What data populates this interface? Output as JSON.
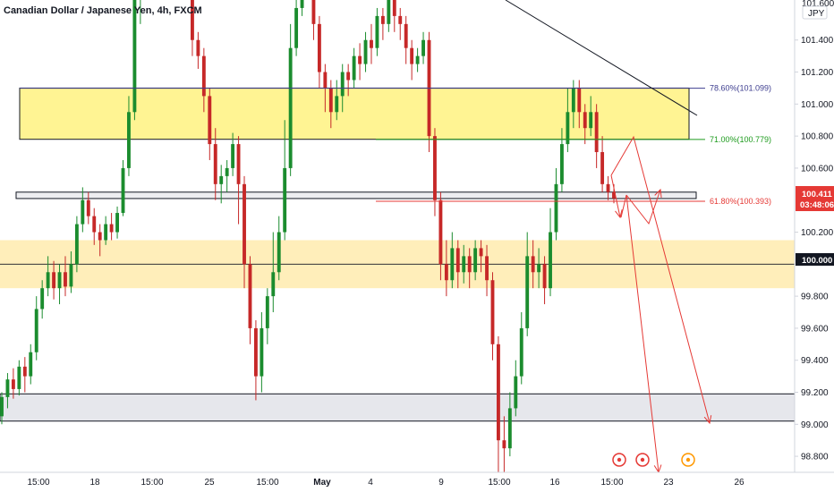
{
  "header": {
    "title": "Canadian Dollar / Japanese Yen, 4h, FXCM"
  },
  "price_axis": {
    "currency": "JPY",
    "top_label": "101.600",
    "ticks": [
      "101.400",
      "101.200",
      "101.000",
      "100.800",
      "100.600",
      "100.200",
      "99.800",
      "99.600",
      "99.400",
      "99.200",
      "99.000",
      "98.800"
    ]
  },
  "price_badges": {
    "last_price": "100.411",
    "countdown": "03:48:06",
    "level_price": "100.000"
  },
  "fib_levels": [
    {
      "label": "78.60%(101.099)",
      "price": 101.099,
      "color": "#3d3d8f"
    },
    {
      "label": "71.00%(100.779)",
      "price": 100.779,
      "color": "#1d9b1d"
    },
    {
      "label": "61.80%(100.393)",
      "price": 100.393,
      "color": "#e53935"
    }
  ],
  "time_axis": [
    "15:00",
    "18",
    "15:00",
    "25",
    "15:00",
    "May",
    "4",
    "9",
    "15:00",
    "16",
    "15:00",
    "23",
    "26"
  ],
  "colors": {
    "up": "#26a69a",
    "up_body": "#1b8c2e",
    "down": "#c62828",
    "zone_yellow": "#fff176",
    "zone_gray": "#d1d4dc",
    "projection": "#e53935"
  },
  "chart_data": {
    "type": "candlestick",
    "title": "Canadian Dollar / Japanese Yen, 4h, FXCM",
    "ylabel": "JPY",
    "ylim": [
      98.7,
      101.65
    ],
    "zones": [
      {
        "kind": "supply",
        "from": 100.78,
        "to": 101.1
      },
      {
        "kind": "flip",
        "from": 100.41,
        "to": 100.45
      },
      {
        "kind": "demand",
        "from": 99.85,
        "to": 100.15
      },
      {
        "kind": "support",
        "from": 99.02,
        "to": 99.19
      }
    ],
    "horizontal_lines": [
      100.0
    ],
    "last_price": 100.411,
    "candles": [
      [
        99.05,
        99.17,
        99.0,
        99.2
      ],
      [
        99.17,
        99.28,
        99.1,
        99.32
      ],
      [
        99.28,
        99.22,
        99.16,
        99.35
      ],
      [
        99.22,
        99.36,
        99.18,
        99.4
      ],
      [
        99.36,
        99.3,
        99.2,
        99.42
      ],
      [
        99.3,
        99.45,
        99.25,
        99.5
      ],
      [
        99.45,
        99.72,
        99.4,
        99.8
      ],
      [
        99.72,
        99.85,
        99.66,
        99.9
      ],
      [
        99.85,
        99.95,
        99.8,
        100.05
      ],
      [
        99.95,
        99.85,
        99.78,
        100.02
      ],
      [
        99.85,
        99.95,
        99.75,
        100.0
      ],
      [
        99.95,
        99.86,
        99.8,
        100.05
      ],
      [
        99.86,
        100.0,
        99.82,
        100.08
      ],
      [
        100.0,
        100.25,
        99.95,
        100.3
      ],
      [
        100.25,
        100.4,
        100.2,
        100.48
      ],
      [
        100.4,
        100.3,
        100.25,
        100.45
      ],
      [
        100.3,
        100.2,
        100.12,
        100.35
      ],
      [
        100.2,
        100.15,
        100.05,
        100.25
      ],
      [
        100.15,
        100.25,
        100.12,
        100.3
      ],
      [
        100.25,
        100.2,
        100.15,
        100.32
      ],
      [
        100.2,
        100.32,
        100.16,
        100.36
      ],
      [
        100.32,
        100.6,
        100.3,
        100.65
      ],
      [
        100.6,
        100.95,
        100.55,
        101.05
      ],
      [
        100.95,
        101.7,
        100.9,
        101.75
      ],
      [
        101.7,
        101.8,
        101.5,
        101.9
      ],
      [
        101.8,
        101.9,
        101.7,
        101.95
      ],
      [
        101.9,
        101.85,
        101.75,
        101.95
      ],
      [
        101.85,
        101.9,
        101.7,
        101.95
      ],
      [
        101.9,
        101.8,
        101.7,
        101.95
      ],
      [
        101.8,
        101.88,
        101.72,
        101.92
      ],
      [
        101.88,
        101.85,
        101.75,
        101.92
      ],
      [
        101.85,
        101.9,
        101.78,
        101.94
      ],
      [
        101.9,
        101.85,
        101.75,
        101.95
      ],
      [
        101.85,
        101.4,
        101.3,
        101.9
      ],
      [
        101.4,
        101.3,
        101.22,
        101.45
      ],
      [
        101.3,
        101.05,
        100.95,
        101.35
      ],
      [
        101.05,
        100.75,
        100.65,
        101.1
      ],
      [
        100.75,
        100.5,
        100.4,
        100.85
      ],
      [
        100.5,
        100.55,
        100.38,
        100.62
      ],
      [
        100.55,
        100.6,
        100.45,
        100.65
      ],
      [
        100.6,
        100.75,
        100.55,
        100.82
      ],
      [
        100.75,
        100.5,
        100.25,
        100.8
      ],
      [
        100.5,
        100.0,
        99.85,
        100.55
      ],
      [
        100.0,
        99.6,
        99.5,
        100.05
      ],
      [
        99.6,
        99.3,
        99.15,
        99.65
      ],
      [
        99.3,
        99.6,
        99.2,
        99.7
      ],
      [
        99.6,
        99.8,
        99.5,
        99.85
      ],
      [
        99.8,
        99.95,
        99.7,
        100.2
      ],
      [
        99.95,
        100.2,
        99.9,
        100.3
      ],
      [
        100.2,
        100.6,
        100.15,
        100.9
      ],
      [
        100.6,
        101.35,
        100.55,
        101.5
      ],
      [
        101.35,
        101.6,
        101.3,
        101.75
      ],
      [
        101.6,
        101.85,
        101.55,
        101.95
      ],
      [
        101.85,
        101.8,
        101.7,
        101.9
      ],
      [
        101.8,
        101.5,
        101.4,
        101.85
      ],
      [
        101.5,
        101.2,
        101.1,
        101.55
      ],
      [
        101.2,
        101.1,
        100.95,
        101.25
      ],
      [
        101.1,
        100.95,
        100.85,
        101.15
      ],
      [
        100.95,
        101.05,
        100.9,
        101.15
      ],
      [
        101.05,
        101.2,
        100.95,
        101.25
      ],
      [
        101.2,
        101.15,
        101.05,
        101.25
      ],
      [
        101.15,
        101.3,
        101.1,
        101.35
      ],
      [
        101.3,
        101.25,
        101.15,
        101.38
      ],
      [
        101.25,
        101.4,
        101.2,
        101.45
      ],
      [
        101.4,
        101.35,
        101.25,
        101.5
      ],
      [
        101.35,
        101.55,
        101.3,
        101.6
      ],
      [
        101.55,
        101.5,
        101.4,
        101.6
      ],
      [
        101.5,
        101.65,
        101.45,
        101.7
      ],
      [
        101.65,
        101.55,
        101.45,
        101.7
      ],
      [
        101.55,
        101.5,
        101.4,
        101.6
      ],
      [
        101.5,
        101.35,
        101.25,
        101.55
      ],
      [
        101.35,
        101.25,
        101.15,
        101.4
      ],
      [
        101.25,
        101.3,
        101.2,
        101.35
      ],
      [
        101.3,
        101.4,
        101.25,
        101.45
      ],
      [
        101.4,
        100.8,
        100.7,
        101.45
      ],
      [
        100.8,
        100.4,
        100.3,
        100.85
      ],
      [
        100.4,
        100.0,
        99.9,
        100.45
      ],
      [
        100.0,
        99.9,
        99.8,
        100.15
      ],
      [
        99.9,
        100.1,
        99.85,
        100.2
      ],
      [
        100.1,
        99.95,
        99.85,
        100.15
      ],
      [
        99.95,
        100.05,
        99.88,
        100.12
      ],
      [
        100.05,
        99.95,
        99.85,
        100.1
      ],
      [
        99.95,
        100.1,
        99.9,
        100.15
      ],
      [
        100.1,
        100.05,
        99.95,
        100.15
      ],
      [
        100.05,
        99.9,
        99.8,
        100.12
      ],
      [
        99.9,
        99.5,
        99.4,
        99.95
      ],
      [
        99.5,
        98.9,
        98.7,
        99.55
      ],
      [
        98.9,
        98.85,
        98.7,
        99.05
      ],
      [
        98.85,
        99.1,
        98.8,
        99.2
      ],
      [
        99.1,
        99.3,
        99.05,
        99.4
      ],
      [
        99.3,
        99.6,
        99.25,
        99.7
      ],
      [
        99.6,
        100.05,
        99.55,
        100.2
      ],
      [
        100.05,
        99.95,
        99.85,
        100.15
      ],
      [
        99.95,
        100.0,
        99.85,
        100.1
      ],
      [
        100.0,
        99.85,
        99.75,
        100.05
      ],
      [
        99.85,
        100.2,
        99.8,
        100.35
      ],
      [
        100.2,
        100.5,
        100.15,
        100.6
      ],
      [
        100.5,
        100.75,
        100.45,
        100.85
      ],
      [
        100.75,
        100.95,
        100.7,
        101.1
      ],
      [
        100.95,
        101.1,
        100.85,
        101.15
      ],
      [
        101.1,
        100.95,
        100.85,
        101.15
      ],
      [
        100.95,
        100.85,
        100.75,
        101.0
      ],
      [
        100.85,
        100.95,
        100.8,
        101.05
      ],
      [
        100.95,
        100.7,
        100.6,
        101.0
      ],
      [
        100.7,
        100.5,
        100.45,
        100.8
      ],
      [
        100.5,
        100.45,
        100.4,
        100.55
      ],
      [
        100.45,
        100.411,
        100.38,
        100.5
      ]
    ]
  }
}
